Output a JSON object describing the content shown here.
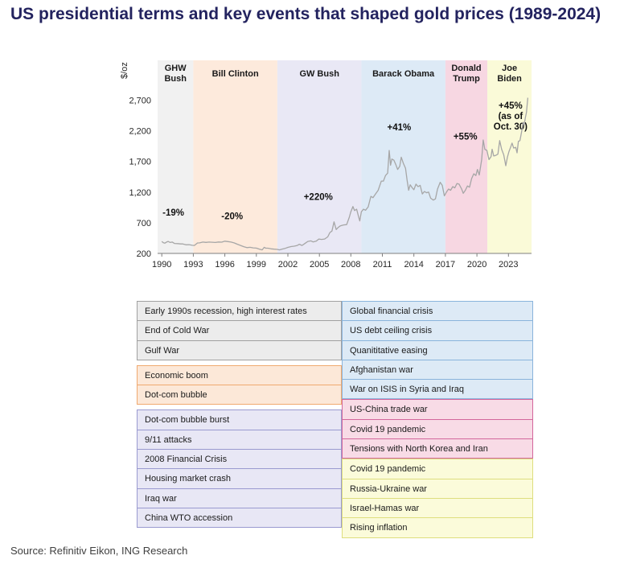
{
  "title": "US presidential terms and key events that shaped gold prices (1989-2024)",
  "source": "Source: Refinitiv Eikon, ING Research",
  "chart_data": {
    "type": "line",
    "title": "US presidential terms and key events that shaped gold prices (1989-2024)",
    "ylabel": "$/oz",
    "xlabel": "",
    "legend_position": "none",
    "grid": false,
    "xlim": [
      1989.6,
      2025.2
    ],
    "ylim": [
      200,
      3350
    ],
    "x_ticks": [
      1990,
      1993,
      1996,
      1999,
      2002,
      2005,
      2008,
      2011,
      2014,
      2017,
      2020,
      2023
    ],
    "y_ticks": [
      200,
      700,
      1200,
      1700,
      2200,
      2700
    ],
    "y_tick_labels": [
      "200",
      "700",
      "1,200",
      "1,700",
      "2,200",
      "2,700"
    ],
    "line_color": "#a6a6a6",
    "bands": [
      {
        "name": "GHW Bush",
        "label_lines": [
          "GHW",
          "Bush"
        ],
        "start": 1989.6,
        "end": 1993,
        "fill": "#f1f1f1",
        "pct_lines": [
          "-19%"
        ],
        "pct_x": 1991.1,
        "pct_y": 820
      },
      {
        "name": "Bill Clinton",
        "label_lines": [
          "Bill Clinton"
        ],
        "start": 1993,
        "end": 2001,
        "fill": "#fdeadc",
        "pct_lines": [
          "-20%"
        ],
        "pct_x": 1996.7,
        "pct_y": 760
      },
      {
        "name": "GW Bush",
        "label_lines": [
          "GW Bush"
        ],
        "start": 2001,
        "end": 2009,
        "fill": "#e9e8f5",
        "pct_lines": [
          "+220%"
        ],
        "pct_x": 2004.9,
        "pct_y": 1075
      },
      {
        "name": "Barack Obama",
        "label_lines": [
          "Barack Obama"
        ],
        "start": 2009,
        "end": 2017,
        "fill": "#ddeaf6",
        "pct_lines": [
          "+41%"
        ],
        "pct_x": 2012.6,
        "pct_y": 2210
      },
      {
        "name": "Donald Trump",
        "label_lines": [
          "Donald",
          "Trump"
        ],
        "start": 2017,
        "end": 2021,
        "fill": "#f7d7e2",
        "pct_lines": [
          "+55%"
        ],
        "pct_x": 2018.9,
        "pct_y": 2060
      },
      {
        "name": "Joe Biden",
        "label_lines": [
          "Joe",
          "Biden"
        ],
        "start": 2021,
        "end": 2025.2,
        "fill": "#fafad8",
        "pct_lines": [
          "+45%",
          "(as of",
          "Oct. 30)"
        ],
        "pct_x": 2023.2,
        "pct_y": 2560
      }
    ],
    "series": [
      {
        "name": "Gold price ($/oz)",
        "points": [
          [
            1990.0,
            395
          ],
          [
            1990.15,
            375
          ],
          [
            1990.3,
            368
          ],
          [
            1990.45,
            385
          ],
          [
            1990.6,
            395
          ],
          [
            1990.8,
            378
          ],
          [
            1991.0,
            385
          ],
          [
            1991.2,
            363
          ],
          [
            1991.5,
            360
          ],
          [
            1991.8,
            355
          ],
          [
            1992.0,
            355
          ],
          [
            1992.3,
            340
          ],
          [
            1992.6,
            343
          ],
          [
            1992.9,
            333
          ],
          [
            1993.1,
            330
          ],
          [
            1993.4,
            370
          ],
          [
            1993.6,
            372
          ],
          [
            1993.9,
            385
          ],
          [
            1994.2,
            380
          ],
          [
            1994.5,
            385
          ],
          [
            1994.8,
            383
          ],
          [
            1995.1,
            378
          ],
          [
            1995.4,
            387
          ],
          [
            1995.7,
            384
          ],
          [
            1996.0,
            400
          ],
          [
            1996.3,
            393
          ],
          [
            1996.6,
            385
          ],
          [
            1996.9,
            370
          ],
          [
            1997.2,
            350
          ],
          [
            1997.5,
            330
          ],
          [
            1997.8,
            310
          ],
          [
            1998.1,
            295
          ],
          [
            1998.4,
            300
          ],
          [
            1998.7,
            290
          ],
          [
            1999.0,
            287
          ],
          [
            1999.3,
            270
          ],
          [
            1999.55,
            258
          ],
          [
            1999.75,
            300
          ],
          [
            1999.9,
            285
          ],
          [
            2000.1,
            285
          ],
          [
            2000.4,
            275
          ],
          [
            2000.7,
            270
          ],
          [
            2001.0,
            265
          ],
          [
            2001.2,
            258
          ],
          [
            2001.5,
            272
          ],
          [
            2001.75,
            283
          ],
          [
            2002.0,
            298
          ],
          [
            2002.3,
            312
          ],
          [
            2002.6,
            318
          ],
          [
            2002.9,
            330
          ],
          [
            2003.1,
            350
          ],
          [
            2003.35,
            330
          ],
          [
            2003.6,
            360
          ],
          [
            2003.9,
            395
          ],
          [
            2004.2,
            405
          ],
          [
            2004.4,
            388
          ],
          [
            2004.7,
            400
          ],
          [
            2004.95,
            435
          ],
          [
            2005.2,
            428
          ],
          [
            2005.5,
            435
          ],
          [
            2005.8,
            470
          ],
          [
            2006.0,
            540
          ],
          [
            2006.2,
            565
          ],
          [
            2006.4,
            715
          ],
          [
            2006.6,
            590
          ],
          [
            2006.8,
            625
          ],
          [
            2007.0,
            650
          ],
          [
            2007.3,
            665
          ],
          [
            2007.6,
            670
          ],
          [
            2007.85,
            790
          ],
          [
            2008.0,
            880
          ],
          [
            2008.2,
            965
          ],
          [
            2008.35,
            900
          ],
          [
            2008.55,
            920
          ],
          [
            2008.75,
            790
          ],
          [
            2008.85,
            730
          ],
          [
            2009.0,
            880
          ],
          [
            2009.2,
            920
          ],
          [
            2009.4,
            905
          ],
          [
            2009.65,
            960
          ],
          [
            2009.9,
            1130
          ],
          [
            2010.1,
            1110
          ],
          [
            2010.35,
            1170
          ],
          [
            2010.6,
            1230
          ],
          [
            2010.9,
            1380
          ],
          [
            2011.1,
            1380
          ],
          [
            2011.3,
            1470
          ],
          [
            2011.5,
            1510
          ],
          [
            2011.65,
            1880
          ],
          [
            2011.78,
            1640
          ],
          [
            2011.9,
            1740
          ],
          [
            2012.1,
            1720
          ],
          [
            2012.3,
            1640
          ],
          [
            2012.45,
            1570
          ],
          [
            2012.65,
            1620
          ],
          [
            2012.8,
            1770
          ],
          [
            2013.0,
            1670
          ],
          [
            2013.2,
            1590
          ],
          [
            2013.35,
            1400
          ],
          [
            2013.5,
            1230
          ],
          [
            2013.65,
            1320
          ],
          [
            2013.85,
            1270
          ],
          [
            2014.0,
            1240
          ],
          [
            2014.2,
            1330
          ],
          [
            2014.4,
            1290
          ],
          [
            2014.6,
            1310
          ],
          [
            2014.8,
            1170
          ],
          [
            2015.0,
            1210
          ],
          [
            2015.2,
            1190
          ],
          [
            2015.4,
            1200
          ],
          [
            2015.6,
            1100
          ],
          [
            2015.85,
            1070
          ],
          [
            2016.05,
            1090
          ],
          [
            2016.25,
            1250
          ],
          [
            2016.5,
            1360
          ],
          [
            2016.7,
            1310
          ],
          [
            2016.9,
            1140
          ],
          [
            2017.1,
            1200
          ],
          [
            2017.3,
            1250
          ],
          [
            2017.5,
            1230
          ],
          [
            2017.7,
            1290
          ],
          [
            2017.9,
            1270
          ],
          [
            2018.1,
            1340
          ],
          [
            2018.3,
            1330
          ],
          [
            2018.55,
            1250
          ],
          [
            2018.7,
            1180
          ],
          [
            2018.9,
            1230
          ],
          [
            2019.1,
            1300
          ],
          [
            2019.3,
            1280
          ],
          [
            2019.5,
            1420
          ],
          [
            2019.7,
            1500
          ],
          [
            2019.9,
            1470
          ],
          [
            2020.05,
            1570
          ],
          [
            2020.22,
            1480
          ],
          [
            2020.45,
            1730
          ],
          [
            2020.6,
            2050
          ],
          [
            2020.75,
            1900
          ],
          [
            2020.95,
            1880
          ],
          [
            2021.15,
            1730
          ],
          [
            2021.35,
            1780
          ],
          [
            2021.45,
            1900
          ],
          [
            2021.6,
            1790
          ],
          [
            2021.8,
            1800
          ],
          [
            2022.0,
            1820
          ],
          [
            2022.17,
            2040
          ],
          [
            2022.35,
            1900
          ],
          [
            2022.55,
            1810
          ],
          [
            2022.75,
            1630
          ],
          [
            2022.9,
            1770
          ],
          [
            2023.05,
            1860
          ],
          [
            2023.2,
            1930
          ],
          [
            2023.35,
            2000
          ],
          [
            2023.5,
            1920
          ],
          [
            2023.7,
            1930
          ],
          [
            2023.82,
            1840
          ],
          [
            2023.95,
            2030
          ],
          [
            2024.1,
            2040
          ],
          [
            2024.25,
            2180
          ],
          [
            2024.4,
            2340
          ],
          [
            2024.5,
            2300
          ],
          [
            2024.62,
            2420
          ],
          [
            2024.72,
            2500
          ],
          [
            2024.8,
            2660
          ],
          [
            2024.85,
            2740
          ]
        ]
      }
    ]
  },
  "event_boxes": [
    {
      "id": "ghw-bush",
      "column": "left",
      "fill": "#ececec",
      "border": "#a0a0a0",
      "items": [
        "Early 1990s recession, high interest rates",
        "End of Cold War",
        "Gulf War"
      ]
    },
    {
      "id": "clinton",
      "column": "left",
      "fill": "#fce8d8",
      "border": "#f0a96f",
      "items": [
        "Economic boom",
        "Dot-com bubble"
      ]
    },
    {
      "id": "gw-bush",
      "column": "left",
      "fill": "#e8e7f5",
      "border": "#9a9ad0",
      "items": [
        "Dot-com bubble burst",
        "9/11 attacks",
        "2008 Financial Crisis",
        "Housing market crash",
        "Iraq war",
        "China WTO accession"
      ]
    },
    {
      "id": "obama",
      "column": "right",
      "fill": "#ddeaf6",
      "border": "#8ab4dc",
      "items": [
        "Global financial crisis",
        "US debt ceiling crisis",
        "Quanititative easing",
        "Afghanistan war",
        "War on ISIS in Syria and Iraq"
      ]
    },
    {
      "id": "trump",
      "column": "right",
      "fill": "#f8dbe6",
      "border": "#d3679c",
      "items": [
        "US-China trade war",
        "Covid 19 pandemic",
        "Tensions with North Korea and Iran"
      ]
    },
    {
      "id": "biden",
      "column": "right",
      "fill": "#fbfbda",
      "border": "#dede7e",
      "items": [
        "Covid 19 pandemic",
        "Russia-Ukraine war",
        "Israel-Hamas war",
        "Rising inflation"
      ]
    }
  ]
}
